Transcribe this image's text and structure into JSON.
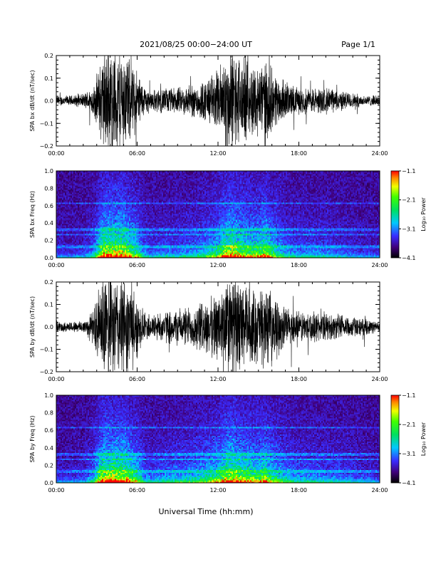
{
  "header": {
    "title": "2021/08/25  00:00−24:00 UT",
    "page": "Page 1/1"
  },
  "xlabel": "Universal Time (hh:mm)",
  "colorbar": {
    "label": "Log₁₀ Power",
    "tick_labels": [
      "−1.1",
      "−2.1",
      "−3.1",
      "−4.1"
    ],
    "range": [
      -4.1,
      -1.1
    ]
  },
  "chart_data": [
    {
      "type": "line",
      "ylabel": "SPA bx dB/dt (nT/sec)",
      "x_range_hours": [
        0,
        24
      ],
      "ylim": [
        -0.2,
        0.2
      ],
      "x_tick_labels": [
        "00:00",
        "06:00",
        "12:00",
        "18:00",
        "24:00"
      ],
      "y_tick_labels": [
        "0.2",
        "0.1",
        "0.0",
        "−0.1",
        "−0.2"
      ],
      "envelope": {
        "hours": [
          0,
          1,
          2,
          2.8,
          3.1,
          3.5,
          4,
          4.5,
          5,
          5.5,
          6,
          6.5,
          7,
          8,
          9,
          10,
          11,
          12,
          12.5,
          13,
          14,
          15,
          15.5,
          16,
          17,
          17.5,
          18,
          19,
          20,
          21,
          22,
          23,
          24
        ],
        "amplitude": [
          0.02,
          0.02,
          0.025,
          0.06,
          0.12,
          0.2,
          0.2,
          0.2,
          0.2,
          0.15,
          0.12,
          0.06,
          0.04,
          0.05,
          0.05,
          0.06,
          0.08,
          0.12,
          0.18,
          0.2,
          0.15,
          0.14,
          0.18,
          0.12,
          0.07,
          0.06,
          0.05,
          0.05,
          0.05,
          0.04,
          0.03,
          0.02,
          0.02
        ]
      }
    },
    {
      "type": "heatmap",
      "ylabel": "SPA bx Freq (Hz)",
      "x_range_hours": [
        0,
        24
      ],
      "ylim": [
        0,
        1.0
      ],
      "x_tick_labels": [
        "00:00",
        "06:00",
        "12:00",
        "18:00",
        "24:00"
      ],
      "y_tick_labels": [
        "1.0",
        "0.8",
        "0.6",
        "0.4",
        "0.2",
        "0.0"
      ],
      "horizontal_lines_hz": [
        0.13,
        0.27,
        0.33,
        0.63
      ]
    },
    {
      "type": "line",
      "ylabel": "SPA by dB/dt (nT/sec)",
      "x_range_hours": [
        0,
        24
      ],
      "ylim": [
        -0.2,
        0.2
      ],
      "x_tick_labels": [
        "00:00",
        "06:00",
        "12:00",
        "18:00",
        "24:00"
      ],
      "y_tick_labels": [
        "0.2",
        "0.1",
        "0.0",
        "−0.1",
        "−0.2"
      ],
      "envelope": {
        "hours": [
          0,
          1,
          2,
          2.8,
          3.1,
          3.5,
          4,
          4.5,
          5,
          5.5,
          6,
          6.5,
          7,
          8,
          9,
          10,
          11,
          12,
          12.5,
          13,
          14,
          15,
          15.5,
          16,
          17,
          17.5,
          18,
          19,
          20,
          21,
          22,
          23,
          24
        ],
        "amplitude": [
          0.02,
          0.02,
          0.025,
          0.07,
          0.14,
          0.2,
          0.2,
          0.2,
          0.2,
          0.16,
          0.12,
          0.06,
          0.05,
          0.06,
          0.07,
          0.08,
          0.1,
          0.13,
          0.18,
          0.2,
          0.16,
          0.14,
          0.16,
          0.12,
          0.08,
          0.07,
          0.06,
          0.06,
          0.05,
          0.05,
          0.04,
          0.03,
          0.02
        ]
      }
    },
    {
      "type": "heatmap",
      "ylabel": "SPA by Freq (Hz)",
      "x_range_hours": [
        0,
        24
      ],
      "ylim": [
        0,
        1.0
      ],
      "x_tick_labels": [
        "00:00",
        "06:00",
        "12:00",
        "18:00",
        "24:00"
      ],
      "y_tick_labels": [
        "1.0",
        "0.8",
        "0.6",
        "0.4",
        "0.2",
        "0.0"
      ],
      "horizontal_lines_hz": [
        0.13,
        0.27,
        0.33,
        0.63
      ]
    }
  ]
}
